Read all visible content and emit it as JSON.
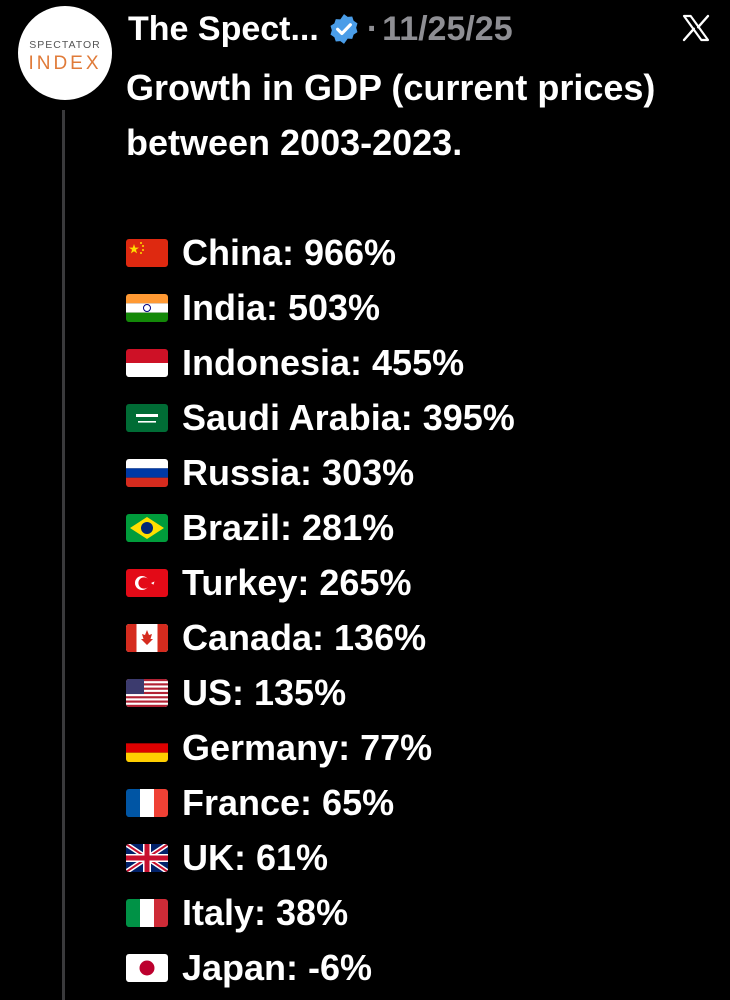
{
  "author": {
    "display_name": "The Spect...",
    "avatar_brand_top": "SPECTATOR",
    "avatar_brand_bottom": "INDEX",
    "verified_color": "#4a9de8",
    "brand_color": "#e07b39"
  },
  "post": {
    "separator": "·",
    "date": "11/25/25",
    "headline": "Growth in GDP (current prices) between 2003-2023."
  },
  "icons": {
    "platform": "x-logo-icon",
    "verified": "verified-badge-icon"
  },
  "rows": [
    {
      "country": "China",
      "value": "966%",
      "label": "China: 966%",
      "flag": "cn"
    },
    {
      "country": "India",
      "value": "503%",
      "label": "India: 503%",
      "flag": "in"
    },
    {
      "country": "Indonesia",
      "value": "455%",
      "label": "Indonesia: 455%",
      "flag": "id"
    },
    {
      "country": "Saudi Arabia",
      "value": "395%",
      "label": "Saudi Arabia: 395%",
      "flag": "sa"
    },
    {
      "country": "Russia",
      "value": "303%",
      "label": "Russia: 303%",
      "flag": "ru"
    },
    {
      "country": "Brazil",
      "value": "281%",
      "label": "Brazil: 281%",
      "flag": "br"
    },
    {
      "country": "Turkey",
      "value": "265%",
      "label": "Turkey: 265%",
      "flag": "tr"
    },
    {
      "country": "Canada",
      "value": "136%",
      "label": "Canada: 136%",
      "flag": "ca"
    },
    {
      "country": "US",
      "value": "135%",
      "label": "US: 135%",
      "flag": "us"
    },
    {
      "country": "Germany",
      "value": "77%",
      "label": "Germany: 77%",
      "flag": "de"
    },
    {
      "country": "France",
      "value": "65%",
      "label": "France: 65%",
      "flag": "fr"
    },
    {
      "country": "UK",
      "value": "61%",
      "label": "UK: 61%",
      "flag": "gb"
    },
    {
      "country": "Italy",
      "value": "38%",
      "label": "Italy: 38%",
      "flag": "it"
    },
    {
      "country": "Japan",
      "value": "-6%",
      "label": "Japan: -6%",
      "flag": "jp"
    }
  ]
}
